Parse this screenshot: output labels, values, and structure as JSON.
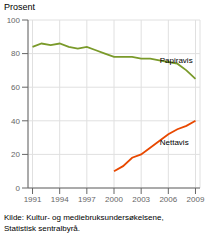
{
  "chart_data": {
    "type": "line",
    "y_label": "Prosent",
    "x": [
      1991,
      1992,
      1993,
      1994,
      1995,
      1996,
      1997,
      1998,
      1999,
      2000,
      2001,
      2002,
      2003,
      2004,
      2005,
      2006,
      2007,
      2008,
      2009
    ],
    "series": [
      {
        "color": "#7a9a2a",
        "values": [
          84,
          86,
          85,
          86,
          84,
          83,
          84,
          82,
          80,
          78,
          78,
          78,
          77,
          77,
          76,
          75,
          74,
          70,
          65
        ]
      },
      {
        "color": "#e84800",
        "values": [
          null,
          null,
          null,
          null,
          null,
          null,
          null,
          null,
          null,
          10,
          13,
          18,
          20,
          24,
          28,
          32,
          35,
          37,
          40
        ]
      }
    ],
    "xlim": [
      1990.5,
      2009.5
    ],
    "ylim": [
      0,
      100
    ],
    "xticks": [
      1991,
      1994,
      1997,
      2000,
      2003,
      2006,
      2009
    ],
    "yticks": [
      0,
      20,
      40,
      60,
      80,
      100
    ],
    "grid": true,
    "annotations": [
      {
        "text": "Papiravis",
        "x": 2004.5,
        "y": 76
      },
      {
        "text": "Nettavis",
        "x": 2004.5,
        "y": 27
      }
    ],
    "source": [
      "Kilde: Kultur- og mediebruksundersøkelsene,",
      "Statistisk sentralbyrå."
    ]
  }
}
